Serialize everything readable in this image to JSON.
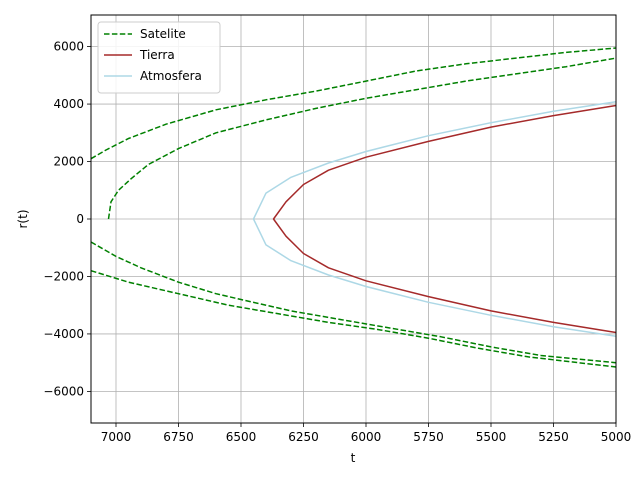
{
  "chart_data": {
    "type": "line",
    "title": "",
    "xlabel": "t",
    "ylabel": "r(t)",
    "xlim": [
      7100,
      5000
    ],
    "ylim": [
      -7100,
      7100
    ],
    "x_ticks": [
      7000,
      6750,
      6500,
      6250,
      6000,
      5750,
      5500,
      5250,
      5000
    ],
    "x_tick_labels": [
      "7000",
      "6750",
      "6500",
      "6250",
      "6000",
      "5750",
      "5500",
      "5250",
      "5000"
    ],
    "y_ticks": [
      -6000,
      -4000,
      -2000,
      0,
      2000,
      4000,
      6000
    ],
    "y_tick_labels": [
      "−6000",
      "−4000",
      "−2000",
      "0",
      "2000",
      "4000",
      "6000"
    ],
    "grid": true,
    "legend_position": "upper-left",
    "series": [
      {
        "name": "Satelite",
        "color": "#008000",
        "style": "dashed",
        "legend": true,
        "points": [
          [
            7100,
            2100
          ],
          [
            7040,
            2400
          ],
          [
            6950,
            2800
          ],
          [
            6800,
            3300
          ],
          [
            6600,
            3800
          ],
          [
            6400,
            4150
          ],
          [
            6200,
            4450
          ],
          [
            6000,
            4800
          ],
          [
            5800,
            5150
          ],
          [
            5600,
            5400
          ],
          [
            5400,
            5600
          ],
          [
            5200,
            5800
          ],
          [
            5000,
            5950
          ]
        ]
      },
      {
        "name": "",
        "color": "#008000",
        "style": "dashed",
        "legend": false,
        "points": [
          [
            7030,
            0
          ],
          [
            7020,
            600
          ],
          [
            6990,
            1000
          ],
          [
            6940,
            1400
          ],
          [
            6870,
            1900
          ],
          [
            6750,
            2450
          ],
          [
            6600,
            3000
          ],
          [
            6400,
            3450
          ],
          [
            6200,
            3850
          ],
          [
            6000,
            4200
          ],
          [
            5800,
            4500
          ],
          [
            5600,
            4800
          ],
          [
            5400,
            5050
          ],
          [
            5200,
            5300
          ],
          [
            5000,
            5600
          ]
        ]
      },
      {
        "name": "",
        "color": "#008000",
        "style": "dashed",
        "legend": false,
        "points": [
          [
            7100,
            -800
          ],
          [
            7000,
            -1300
          ],
          [
            6900,
            -1700
          ],
          [
            6750,
            -2200
          ],
          [
            6600,
            -2600
          ],
          [
            6500,
            -2800
          ],
          [
            6300,
            -3200
          ],
          [
            6100,
            -3500
          ],
          [
            5900,
            -3800
          ],
          [
            5700,
            -4100
          ],
          [
            5500,
            -4450
          ],
          [
            5300,
            -4750
          ],
          [
            5000,
            -5000
          ]
        ]
      },
      {
        "name": "",
        "color": "#008000",
        "style": "dashed",
        "legend": false,
        "points": [
          [
            7100,
            -1800
          ],
          [
            6950,
            -2200
          ],
          [
            6750,
            -2600
          ],
          [
            6550,
            -3000
          ],
          [
            6350,
            -3300
          ],
          [
            6150,
            -3600
          ],
          [
            5950,
            -3850
          ],
          [
            5750,
            -4150
          ],
          [
            5550,
            -4500
          ],
          [
            5350,
            -4800
          ],
          [
            5150,
            -5000
          ],
          [
            5000,
            -5150
          ]
        ]
      },
      {
        "name": "Tierra",
        "color": "#a52a2a",
        "style": "solid",
        "legend": true,
        "points": [
          [
            5000,
            3950
          ],
          [
            5250,
            3600
          ],
          [
            5500,
            3200
          ],
          [
            5750,
            2700
          ],
          [
            6000,
            2150
          ],
          [
            6150,
            1700
          ],
          [
            6250,
            1200
          ],
          [
            6320,
            600
          ],
          [
            6370,
            0
          ],
          [
            6320,
            -600
          ],
          [
            6250,
            -1200
          ],
          [
            6150,
            -1700
          ],
          [
            6000,
            -2150
          ],
          [
            5750,
            -2700
          ],
          [
            5500,
            -3200
          ],
          [
            5250,
            -3600
          ],
          [
            5000,
            -3950
          ]
        ]
      },
      {
        "name": "Atmosfera",
        "color": "#add8e6",
        "style": "solid",
        "legend": true,
        "points": [
          [
            5000,
            4080
          ],
          [
            5250,
            3750
          ],
          [
            5500,
            3350
          ],
          [
            5750,
            2900
          ],
          [
            6000,
            2350
          ],
          [
            6150,
            1950
          ],
          [
            6300,
            1450
          ],
          [
            6400,
            900
          ],
          [
            6450,
            0
          ],
          [
            6400,
            -900
          ],
          [
            6300,
            -1450
          ],
          [
            6150,
            -1950
          ],
          [
            6000,
            -2350
          ],
          [
            5750,
            -2900
          ],
          [
            5500,
            -3350
          ],
          [
            5250,
            -3750
          ],
          [
            5000,
            -4080
          ]
        ]
      }
    ]
  }
}
